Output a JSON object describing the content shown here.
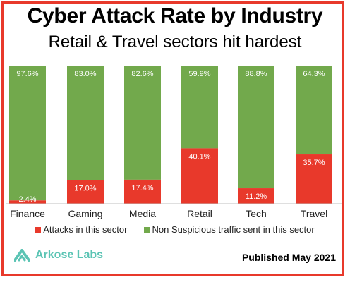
{
  "chart_data": {
    "type": "bar",
    "stacked": true,
    "percent_stacked": true,
    "title": "Cyber Attack Rate by Industry",
    "subtitle": "Retail & Travel sectors hit hardest",
    "categories": [
      "Finance",
      "Gaming",
      "Media",
      "Retail",
      "Tech",
      "Travel"
    ],
    "series": [
      {
        "name": "Attacks in this sector",
        "values": [
          2.4,
          17.0,
          17.4,
          40.1,
          11.2,
          35.7
        ],
        "labels": [
          "2.4%",
          "17.0%",
          "17.4%",
          "40.1%",
          "11.2%",
          "35.7%"
        ],
        "color": "#e8392b"
      },
      {
        "name": "Non Suspicious traffic sent in this sector",
        "values": [
          97.6,
          83.0,
          82.6,
          59.9,
          88.8,
          64.3
        ],
        "labels": [
          "97.6%",
          "83.0%",
          "82.6%",
          "59.9%",
          "88.8%",
          "64.3%"
        ],
        "color": "#72a94c"
      }
    ],
    "ylim": [
      0,
      100
    ],
    "grid": false,
    "legend_position": "bottom"
  },
  "logo": {
    "text": "Arkose Labs",
    "color": "#5bc4b4"
  },
  "footer": {
    "published": "Published May 2021"
  },
  "frame_color": "#e8392b"
}
